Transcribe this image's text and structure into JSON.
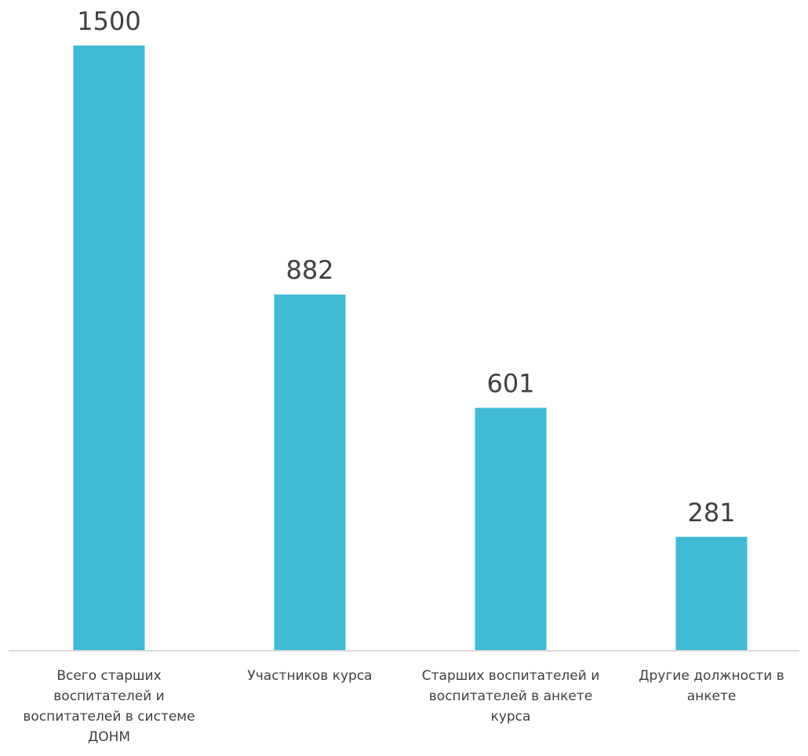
{
  "chart_data": {
    "type": "bar",
    "categories": [
      "Всего старших воспитателей и воспитателей в системе ДОНМ",
      "Участников курса",
      "Старших воспитателей и воспитателей в анкете курса",
      "Другие должности в анкете"
    ],
    "values": [
      1500,
      882,
      601,
      281
    ],
    "data_labels": [
      "1500",
      "882",
      "601",
      "281"
    ],
    "title": "",
    "xlabel": "",
    "ylabel": "",
    "ylim": [
      0,
      1500
    ],
    "grid": false,
    "legend": "none",
    "bar_color": "#40B9D3",
    "axis_color": "#D9D9D9",
    "label_color": "#404040"
  }
}
